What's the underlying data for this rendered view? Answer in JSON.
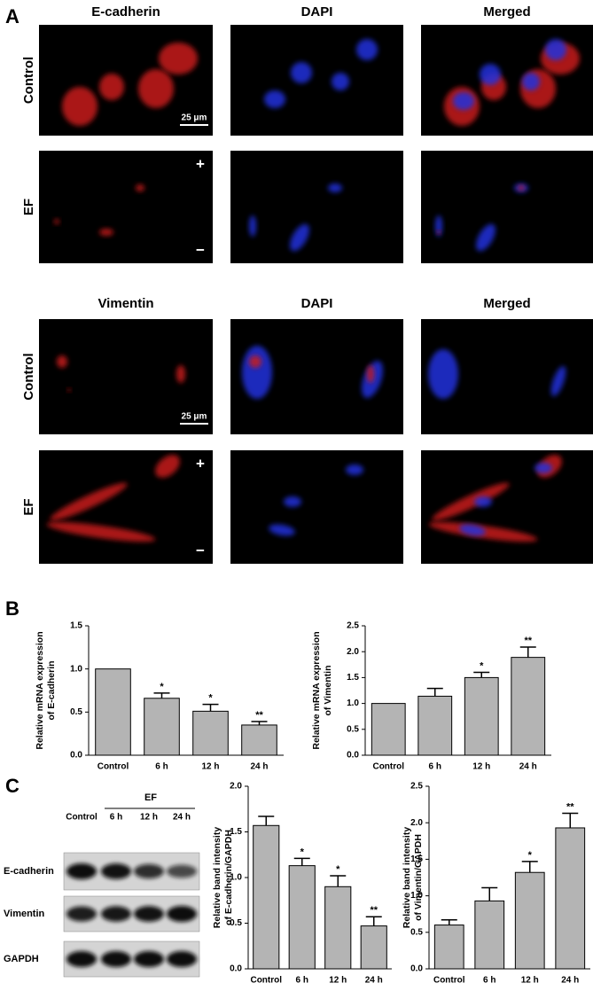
{
  "panel_labels": [
    "A",
    "B",
    "C"
  ],
  "micrographs": [
    {
      "columns": [
        "E-cadherin",
        "DAPI",
        "Merged"
      ],
      "rows": [
        "Control",
        "EF"
      ],
      "scale_bar": "25 μm",
      "polarity": [
        "+",
        "−"
      ]
    },
    {
      "columns": [
        "Vimentin",
        "DAPI",
        "Merged"
      ],
      "rows": [
        "Control",
        "EF"
      ],
      "scale_bar": "25 μm",
      "polarity": [
        "+",
        "−"
      ]
    }
  ],
  "western_blot": {
    "group_label": "EF",
    "lanes": [
      "Control",
      "6 h",
      "12 h",
      "24 h"
    ],
    "proteins": [
      "E-cadherin",
      "Vimentin",
      "GAPDH"
    ]
  },
  "chart_data": [
    {
      "type": "bar",
      "y_label": [
        "Relative mRNA expression",
        "of E-cadherin"
      ],
      "categories": [
        "Control",
        "6 h",
        "12 h",
        "24 h"
      ],
      "values": [
        1.0,
        0.66,
        0.51,
        0.35
      ],
      "errors": [
        null,
        0.06,
        0.08,
        0.04
      ],
      "annotations": [
        null,
        "*",
        "*",
        "**"
      ],
      "color": "#b4b4b4",
      "ylim": [
        0,
        1.5
      ],
      "yticks": [
        {
          "value": 0,
          "label": "0.0"
        },
        0.5,
        {
          "value": 1,
          "label": "1.0"
        },
        1.5
      ]
    },
    {
      "type": "bar",
      "y_label": [
        "Relative mRNA expression",
        "of Vimentin"
      ],
      "categories": [
        "Control",
        "6 h",
        "12 h",
        "24 h"
      ],
      "values": [
        1.0,
        1.14,
        1.5,
        1.89
      ],
      "errors": [
        null,
        0.15,
        0.1,
        0.2
      ],
      "annotations": [
        null,
        null,
        "*",
        "**"
      ],
      "color": "#b4b4b4",
      "ylim": [
        0,
        2.5
      ],
      "yticks": [
        {
          "value": 0,
          "label": "0.0"
        },
        0.5,
        {
          "value": 1,
          "label": "1.0"
        },
        1.5,
        {
          "value": 2,
          "label": "2.0"
        },
        2.5
      ]
    },
    {
      "type": "bar",
      "y_label": [
        "Relative band intensity",
        "of E-cadherin/GAPDH"
      ],
      "categories": [
        "Control",
        "6 h",
        "12 h",
        "24 h"
      ],
      "values": [
        1.57,
        1.13,
        0.9,
        0.47
      ],
      "errors": [
        0.1,
        0.08,
        0.12,
        0.1
      ],
      "annotations": [
        null,
        "*",
        "*",
        "**"
      ],
      "color": "#b4b4b4",
      "ylim": [
        0,
        2
      ],
      "yticks": [
        {
          "value": 0,
          "label": "0.0"
        },
        0.5,
        {
          "value": 1,
          "label": "1.0"
        },
        1.5,
        {
          "value": 2,
          "label": "2.0"
        }
      ]
    },
    {
      "type": "bar",
      "y_label": [
        "Relative band intensity",
        "of Vimentin/GAPDH"
      ],
      "categories": [
        "Control",
        "6 h",
        "12 h",
        "24 h"
      ],
      "values": [
        0.6,
        0.93,
        1.32,
        1.93
      ],
      "errors": [
        0.07,
        0.18,
        0.15,
        0.2
      ],
      "annotations": [
        null,
        null,
        "*",
        "**"
      ],
      "color": "#b4b4b4",
      "ylim": [
        0,
        2.5
      ],
      "yticks": [
        {
          "value": 0,
          "label": "0.0"
        },
        0.5,
        {
          "value": 1,
          "label": "1.0"
        },
        1.5,
        {
          "value": 2,
          "label": "2.0"
        },
        2.5
      ]
    }
  ]
}
